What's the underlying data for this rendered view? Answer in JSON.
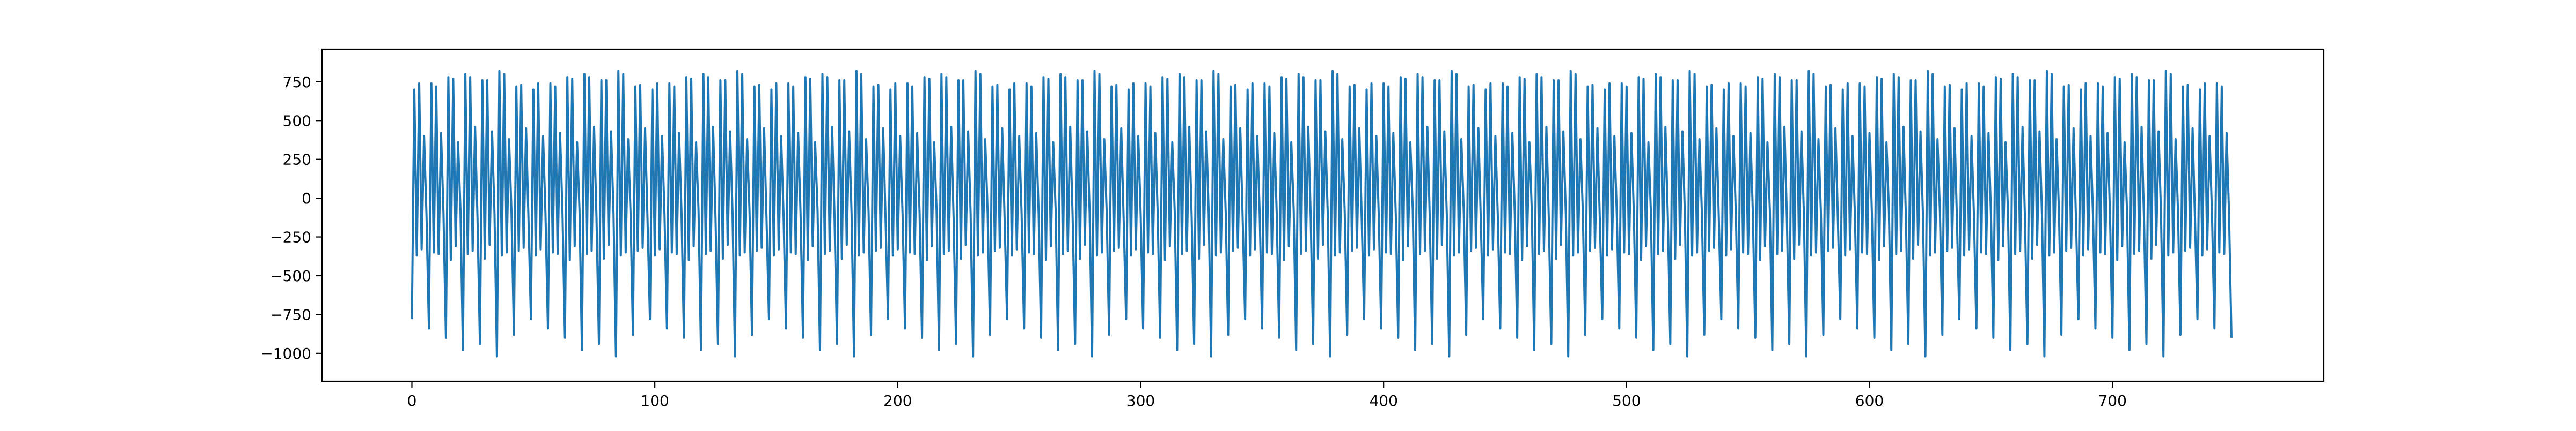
{
  "chart_data": {
    "type": "line",
    "title": "",
    "xlabel": "",
    "ylabel": "",
    "xlim": [
      -37,
      787
    ],
    "ylim": [
      -1180,
      960
    ],
    "xticks": [
      0,
      100,
      200,
      300,
      400,
      500,
      600,
      700
    ],
    "xtick_labels": [
      "0",
      "100",
      "200",
      "300",
      "400",
      "500",
      "600",
      "700"
    ],
    "yticks": [
      -1000,
      -750,
      -500,
      -250,
      0,
      250,
      500,
      750
    ],
    "ytick_labels": [
      "−1000",
      "−750",
      "−500",
      "−250",
      "0",
      "250",
      "500",
      "750"
    ],
    "grid": false,
    "legend": "none",
    "series": [
      {
        "color": "#1f77b4",
        "period": 7,
        "cycle_values": [
          -780,
          700,
          -370,
          740,
          -330,
          400,
          -110
        ],
        "cycle_jitter": [
          [
            0,
            0,
            0,
            0,
            0,
            0,
            0
          ],
          [
            -60,
            40,
            20,
            -20,
            -30,
            20,
            10
          ],
          [
            -120,
            80,
            -30,
            30,
            20,
            -40,
            30
          ],
          [
            -200,
            100,
            10,
            40,
            -10,
            60,
            -20
          ],
          [
            -160,
            60,
            -20,
            20,
            30,
            30,
            10
          ],
          [
            -240,
            120,
            0,
            60,
            -20,
            -20,
            20
          ],
          [
            -100,
            20,
            30,
            -10,
            10,
            50,
            -30
          ]
        ],
        "n_points": 750
      }
    ]
  }
}
